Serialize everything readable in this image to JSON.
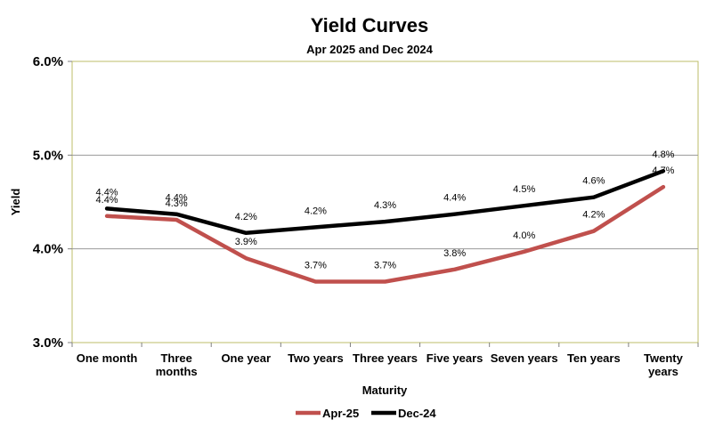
{
  "chart_data": {
    "type": "line",
    "title": "Yield Curves",
    "subtitle": "Apr 2025 and Dec 2024",
    "xlabel": "Maturity",
    "ylabel": "Yield",
    "categories": [
      [
        "One month"
      ],
      [
        "Three",
        "months"
      ],
      [
        "One year"
      ],
      [
        "Two years"
      ],
      [
        "Three years"
      ],
      [
        "Five years"
      ],
      [
        "Seven years"
      ],
      [
        "Ten years"
      ],
      [
        "Twenty",
        "years"
      ]
    ],
    "ylim": [
      3.0,
      6.0
    ],
    "yticks": [
      {
        "value": 3.0,
        "label": "3.0%"
      },
      {
        "value": 4.0,
        "label": "4.0%"
      },
      {
        "value": 5.0,
        "label": "5.0%"
      },
      {
        "value": 6.0,
        "label": "6.0%"
      }
    ],
    "grid": true,
    "legend_position": "bottom",
    "series": [
      {
        "name": "Apr-25",
        "color": "#c0504d",
        "values": [
          4.35,
          4.31,
          3.9,
          3.65,
          3.65,
          3.78,
          3.97,
          4.19,
          4.66
        ],
        "labels": [
          "4.4%",
          "4.3%",
          "3.9%",
          "3.7%",
          "3.7%",
          "3.8%",
          "4.0%",
          "4.2%",
          "4.7%"
        ]
      },
      {
        "name": "Dec-24",
        "color": "#000000",
        "values": [
          4.43,
          4.37,
          4.17,
          4.23,
          4.29,
          4.37,
          4.46,
          4.55,
          4.83
        ],
        "labels": [
          "4.4%",
          "4.4%",
          "4.2%",
          "4.2%",
          "4.3%",
          "4.4%",
          "4.5%",
          "4.6%",
          "4.8%"
        ]
      }
    ]
  }
}
